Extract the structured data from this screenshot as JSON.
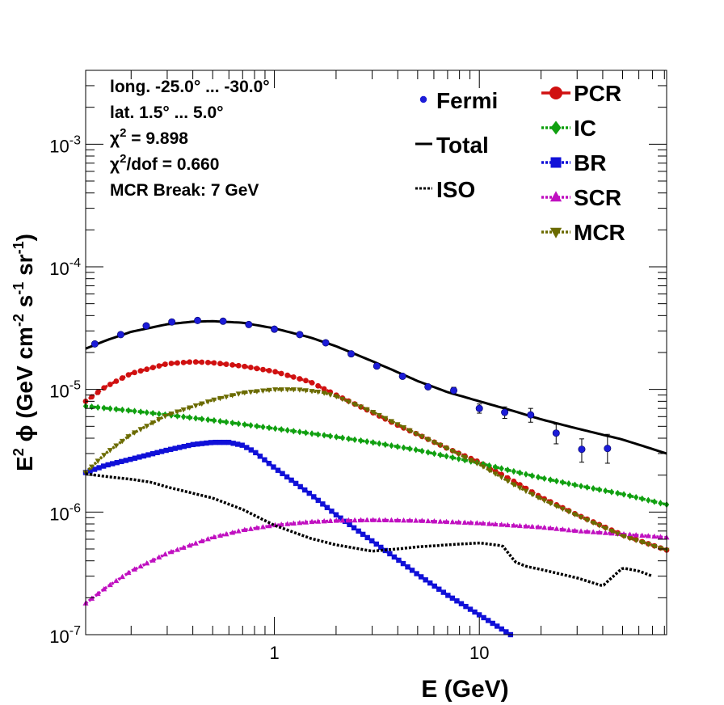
{
  "chart_data": {
    "type": "scatter",
    "xlabel": "E (GeV)",
    "ylabel_parts": [
      "E",
      "2",
      " ϕ (GeV cm",
      "-2",
      " s",
      "-1",
      " sr",
      "-1",
      ")"
    ],
    "x_scale": "log",
    "y_scale": "log",
    "xlim": [
      0.12,
      82
    ],
    "ylim": [
      1e-07,
      0.004
    ],
    "x_ticks": [
      {
        "value": 1,
        "label": "1"
      },
      {
        "value": 10,
        "label": "10"
      }
    ],
    "y_ticks": [
      {
        "value": 1e-07,
        "base": "10",
        "exp": "-7"
      },
      {
        "value": 1e-06,
        "base": "10",
        "exp": "-6"
      },
      {
        "value": 1e-05,
        "base": "10",
        "exp": "-5"
      },
      {
        "value": 0.0001,
        "base": "10",
        "exp": "-4"
      },
      {
        "value": 0.001,
        "base": "10",
        "exp": "-3"
      }
    ],
    "info_lines": [
      {
        "text": "long. -25.0° ... -30.0°"
      },
      {
        "text": "lat. 1.5° ... 5.0°"
      },
      {
        "pre": "χ",
        "sup": "2",
        "post": " = 9.898"
      },
      {
        "pre": "χ",
        "sup": "2",
        "post": "/dof = 0.660"
      },
      {
        "text": "MCR Break:  7 GeV"
      }
    ],
    "legend_left": [
      {
        "key": "fermi",
        "label": "Fermi"
      },
      {
        "key": "total",
        "label": "Total"
      },
      {
        "key": "iso",
        "label": "ISO"
      }
    ],
    "legend_right": [
      {
        "key": "pcr",
        "label": "PCR"
      },
      {
        "key": "ic",
        "label": "IC"
      },
      {
        "key": "br",
        "label": "BR"
      },
      {
        "key": "scr",
        "label": "SCR"
      },
      {
        "key": "mcr",
        "label": "MCR"
      }
    ],
    "fermi": {
      "name": "Fermi",
      "color": "#1c1cd8",
      "points": [
        [
          0.133,
          2.35e-05,
          0,
          0
        ],
        [
          0.178,
          2.8e-05,
          0,
          0
        ],
        [
          0.237,
          3.3e-05,
          0,
          0
        ],
        [
          0.316,
          3.55e-05,
          0,
          0
        ],
        [
          0.422,
          3.65e-05,
          0,
          0
        ],
        [
          0.562,
          3.6e-05,
          0,
          0
        ],
        [
          0.75,
          3.38e-05,
          0,
          0
        ],
        [
          1.0,
          3.1e-05,
          0,
          0
        ],
        [
          1.33,
          2.8e-05,
          0,
          0
        ],
        [
          1.78,
          2.4e-05,
          0,
          0
        ],
        [
          2.37,
          1.95e-05,
          0,
          0
        ],
        [
          3.16,
          1.55e-05,
          0,
          0
        ],
        [
          4.22,
          1.28e-05,
          0,
          0
        ],
        [
          5.62,
          1.05e-05,
          0,
          0
        ],
        [
          7.5,
          9.8e-06,
          6e-07,
          6e-07
        ],
        [
          10.0,
          7e-06,
          6e-07,
          6e-07
        ],
        [
          13.3,
          6.5e-06,
          7e-07,
          7e-07
        ],
        [
          17.8,
          6.2e-06,
          8e-07,
          8e-07
        ],
        [
          23.7,
          4.4e-06,
          8e-07,
          8e-07
        ],
        [
          31.6,
          3.25e-06,
          7e-07,
          7e-07
        ],
        [
          42.2,
          3.3e-06,
          1e-06,
          8e-07
        ]
      ]
    },
    "series": [
      {
        "key": "total",
        "name": "Total",
        "color": "#000000",
        "style": "solid",
        "marker": "none",
        "x": [
          0.12,
          0.15,
          0.2,
          0.3,
          0.4,
          0.5,
          0.7,
          1.0,
          1.5,
          2.0,
          3.0,
          4.0,
          5.0,
          7.0,
          10.0,
          15.0,
          20.0,
          30.0,
          50.0,
          82.0
        ],
        "y": [
          2.15e-05,
          2.5e-05,
          2.95e-05,
          3.4e-05,
          3.57e-05,
          3.6e-05,
          3.5e-05,
          3.15e-05,
          2.65e-05,
          2.25e-05,
          1.7e-05,
          1.38e-05,
          1.17e-05,
          9.5e-06,
          8e-06,
          6.6e-06,
          5.7e-06,
          4.8e-06,
          3.9e-06,
          3e-06
        ]
      },
      {
        "key": "pcr",
        "name": "PCR",
        "color": "#d01010",
        "style": "dotted",
        "marker": "circle",
        "x": [
          0.12,
          0.15,
          0.2,
          0.3,
          0.4,
          0.5,
          0.7,
          1.0,
          1.5,
          2.0,
          3.0,
          4.0,
          5.0,
          7.0,
          10.0,
          15.0,
          20.0,
          30.0,
          50.0,
          82.0
        ],
        "y": [
          8e-06,
          1.05e-05,
          1.35e-05,
          1.62e-05,
          1.68e-05,
          1.65e-05,
          1.55e-05,
          1.4e-05,
          1.15e-05,
          9e-06,
          6.5e-06,
          5.1e-06,
          4.3e-06,
          3.3e-06,
          2.55e-06,
          1.75e-06,
          1.32e-06,
          9.5e-07,
          6.5e-07,
          4.9e-07
        ]
      },
      {
        "key": "ic",
        "name": "IC",
        "color": "#10a010",
        "style": "dotted",
        "marker": "diamond",
        "x": [
          0.12,
          0.2,
          0.3,
          0.5,
          1.0,
          2.0,
          3.0,
          5.0,
          10.0,
          20.0,
          30.0,
          50.0,
          82.0
        ],
        "y": [
          7.3e-06,
          6.7e-06,
          6.2e-06,
          5.6e-06,
          4.8e-06,
          4.1e-06,
          3.7e-06,
          3.2e-06,
          2.5e-06,
          1.9e-06,
          1.65e-06,
          1.4e-06,
          1.15e-06
        ]
      },
      {
        "key": "br",
        "name": "BR",
        "color": "#1010d8",
        "style": "dotted",
        "marker": "square",
        "x": [
          0.12,
          0.15,
          0.2,
          0.3,
          0.4,
          0.5,
          0.6,
          0.7,
          0.8,
          1.0,
          1.5,
          2.0,
          3.0,
          4.0,
          5.0,
          7.0,
          10.0,
          14.2
        ],
        "y": [
          2.1e-06,
          2.4e-06,
          2.7e-06,
          3.2e-06,
          3.55e-06,
          3.7e-06,
          3.7e-06,
          3.5e-06,
          3.1e-06,
          2.3e-06,
          1.4e-06,
          9.5e-07,
          5.8e-07,
          4.1e-07,
          3.1e-07,
          2.1e-07,
          1.45e-07,
          1e-07
        ]
      },
      {
        "key": "scr",
        "name": "SCR",
        "color": "#c010c0",
        "style": "dotted",
        "marker": "triangle",
        "x": [
          0.12,
          0.15,
          0.2,
          0.3,
          0.5,
          0.7,
          1.0,
          1.5,
          2.0,
          3.0,
          5.0,
          10.0,
          20.0,
          30.0,
          50.0,
          82.0
        ],
        "y": [
          1.8e-07,
          2.4e-07,
          3.3e-07,
          4.6e-07,
          6.2e-07,
          7.1e-07,
          7.8e-07,
          8.3e-07,
          8.5e-07,
          8.6e-07,
          8.5e-07,
          8.1e-07,
          7.5e-07,
          7e-07,
          6.6e-07,
          6.2e-07
        ]
      },
      {
        "key": "mcr",
        "name": "MCR",
        "color": "#6b6b00",
        "style": "dotted",
        "marker": "triangle-down",
        "x": [
          0.12,
          0.15,
          0.2,
          0.3,
          0.5,
          0.7,
          1.0,
          1.3,
          1.7,
          2.0,
          3.0,
          5.0,
          7.0,
          10.0,
          15.0,
          20.0,
          30.0,
          50.0,
          82.0
        ],
        "y": [
          2.1e-06,
          3e-06,
          4.3e-06,
          6.2e-06,
          8.2e-06,
          9.4e-06,
          1e-05,
          1e-05,
          9.5e-06,
          8.8e-06,
          6.6e-06,
          4.3e-06,
          3.3e-06,
          2.45e-06,
          1.65e-06,
          1.28e-06,
          9.4e-07,
          6.4e-07,
          4.9e-07
        ]
      },
      {
        "key": "iso",
        "name": "ISO",
        "color": "#000000",
        "style": "dotted",
        "marker": "none",
        "x": [
          0.12,
          0.15,
          0.2,
          0.25,
          0.3,
          0.5,
          0.7,
          1.0,
          1.5,
          2.0,
          3.0,
          4.0,
          5.0,
          7.0,
          10.0,
          13.0,
          15.0,
          17.0,
          20.0,
          30.0,
          40.0,
          50.0,
          60.0,
          70.0
        ],
        "y": [
          2.05e-06,
          1.95e-06,
          1.85e-06,
          1.75e-06,
          1.6e-06,
          1.3e-06,
          1.05e-06,
          7.8e-07,
          6.1e-07,
          5.4e-07,
          4.8e-07,
          5e-07,
          5.2e-07,
          5.4e-07,
          5.6e-07,
          5.3e-07,
          3.9e-07,
          3.6e-07,
          3.4e-07,
          2.9e-07,
          2.5e-07,
          3.5e-07,
          3.3e-07,
          3e-07
        ]
      }
    ]
  }
}
